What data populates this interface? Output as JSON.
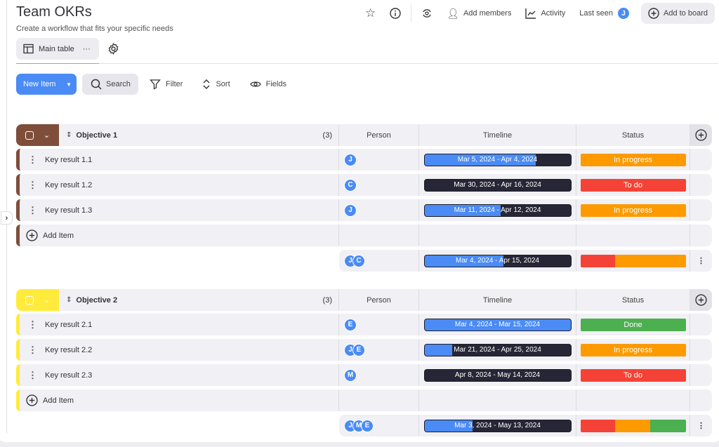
{
  "header": {
    "title": "Team OKRs",
    "subtitle": "Create a workflow that fits your specific needs",
    "add_members": "Add members",
    "activity": "Activity",
    "last_seen": "Last seen",
    "last_seen_avatar": "J",
    "add_to_board": "Add to board"
  },
  "view": {
    "main_table": "Main table",
    "more": "···"
  },
  "toolbar": {
    "new_item": "New Item",
    "search": "Search",
    "filter": "Filter",
    "sort": "Sort",
    "fields": "Fields"
  },
  "columns": {
    "person": "Person",
    "timeline": "Timeline",
    "status": "Status"
  },
  "colors": {
    "blue": "#4a8bf5",
    "in_progress": "#fd9a00",
    "to_do": "#f44336",
    "done": "#4caf50"
  },
  "groups": [
    {
      "title": "Objective 1",
      "count": "(3)",
      "color": "#7e4e3a",
      "add_item": "Add Item",
      "items": [
        {
          "name": "Key result 1.1",
          "people": [
            "J"
          ],
          "timeline": "Mar 5, 2024 - Apr 4, 2024",
          "progress": 0.76,
          "status": "In progress",
          "status_color": "#fd9a00"
        },
        {
          "name": "Key result 1.2",
          "people": [
            "C"
          ],
          "timeline": "Mar 30, 2024 - Apr 16, 2024",
          "progress": 0,
          "status": "To do",
          "status_color": "#f44336"
        },
        {
          "name": "Key result 1.3",
          "people": [
            "J"
          ],
          "timeline": "Mar 11, 2024 - Apr 12, 2024",
          "progress": 0.52,
          "status": "In progress",
          "status_color": "#fd9a00"
        }
      ],
      "summary": {
        "people": [
          "J",
          "C"
        ],
        "timeline": "Mar 4, 2024 - Apr 15, 2024",
        "progress": 0.54,
        "status_mix": [
          {
            "color": "#f44336",
            "share": 0.333
          },
          {
            "color": "#fd9a00",
            "share": 0.667
          }
        ]
      }
    },
    {
      "title": "Objective 2",
      "count": "(3)",
      "color": "#ffeb3b",
      "add_item": "Add Item",
      "items": [
        {
          "name": "Key result 2.1",
          "people": [
            "E"
          ],
          "timeline": "Mar 4, 2024 - Mar 15, 2024",
          "progress": 1,
          "status": "Done",
          "status_color": "#4caf50"
        },
        {
          "name": "Key result 2.2",
          "people": [
            "J",
            "E"
          ],
          "timeline": "Mar 21, 2024 - Apr 25, 2024",
          "progress": 0.19,
          "status": "In progress",
          "status_color": "#fd9a00"
        },
        {
          "name": "Key result 2.3",
          "people": [
            "M"
          ],
          "timeline": "Apr 8, 2024 - May 14, 2024",
          "progress": 0,
          "status": "To do",
          "status_color": "#f44336"
        }
      ],
      "summary": {
        "people": [
          "J",
          "M",
          "E"
        ],
        "timeline": "Mar 3, 2024 - May 13, 2024",
        "progress": 0.33,
        "status_mix": [
          {
            "color": "#f44336",
            "share": 0.333
          },
          {
            "color": "#fd9a00",
            "share": 0.333
          },
          {
            "color": "#4caf50",
            "share": 0.334
          }
        ]
      }
    }
  ]
}
